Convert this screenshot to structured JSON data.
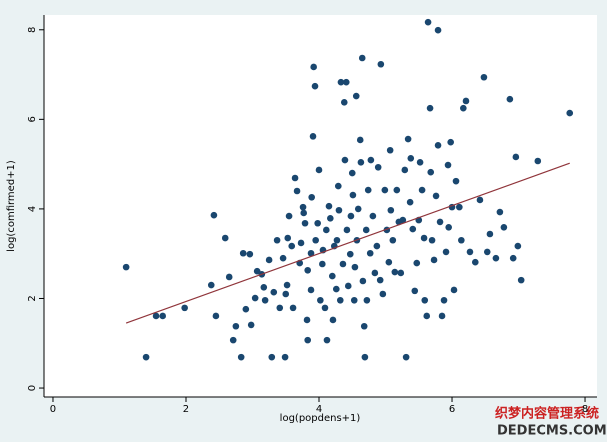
{
  "chart_data": {
    "type": "scatter",
    "x_label": "log(popdens+1)",
    "y_label": "log(comfirmed+1)",
    "xlim": [
      -0.135,
      8.18
    ],
    "ylim": [
      -0.2,
      8.33
    ],
    "xticks": [
      0,
      2,
      4,
      6,
      8
    ],
    "yticks": [
      0,
      2,
      4,
      6,
      8
    ],
    "grid": false,
    "series": [
      {
        "color": "#1a476f",
        "style": "markers",
        "x": [
          1.1,
          1.4,
          1.55,
          1.65,
          1.98,
          2.42,
          2.38,
          2.45,
          2.59,
          2.65,
          2.71,
          2.75,
          2.83,
          2.86,
          2.96,
          2.9,
          2.98,
          3.04,
          3.07,
          3.14,
          3.17,
          3.19,
          3.25,
          3.29,
          3.32,
          3.37,
          3.41,
          3.46,
          3.49,
          3.5,
          3.52,
          3.53,
          3.55,
          3.59,
          3.61,
          3.64,
          3.67,
          3.71,
          3.73,
          3.76,
          3.77,
          3.79,
          3.82,
          3.83,
          3.83,
          3.88,
          3.88,
          3.89,
          3.91,
          3.92,
          3.94,
          3.95,
          3.98,
          4.0,
          4.02,
          4.05,
          4.06,
          4.09,
          4.11,
          4.12,
          4.15,
          4.17,
          4.2,
          4.21,
          4.23,
          4.26,
          4.27,
          4.29,
          4.3,
          4.32,
          4.33,
          4.36,
          4.38,
          4.39,
          4.41,
          4.42,
          4.44,
          4.47,
          4.48,
          4.5,
          4.51,
          4.53,
          4.54,
          4.56,
          4.57,
          4.59,
          4.62,
          4.63,
          4.65,
          4.66,
          4.68,
          4.69,
          4.71,
          4.72,
          4.74,
          4.77,
          4.78,
          4.81,
          4.84,
          4.87,
          4.89,
          4.92,
          4.93,
          4.96,
          4.99,
          5.02,
          5.05,
          5.07,
          5.08,
          5.11,
          5.14,
          5.17,
          5.2,
          5.23,
          5.26,
          5.29,
          5.31,
          5.34,
          5.37,
          5.38,
          5.41,
          5.44,
          5.47,
          5.5,
          5.52,
          5.55,
          5.58,
          5.59,
          5.62,
          5.64,
          5.67,
          5.68,
          5.7,
          5.73,
          5.76,
          5.79,
          5.79,
          5.82,
          5.85,
          5.88,
          5.91,
          5.94,
          5.95,
          5.98,
          6.0,
          6.03,
          6.06,
          6.11,
          6.14,
          6.17,
          6.21,
          6.27,
          6.35,
          6.42,
          6.48,
          6.53,
          6.57,
          6.66,
          6.72,
          6.78,
          6.87,
          6.92,
          6.96,
          6.99,
          7.04,
          7.29,
          7.77
        ],
        "values": [
          2.7,
          0.69,
          1.61,
          1.61,
          1.79,
          3.86,
          2.3,
          1.61,
          3.35,
          2.48,
          1.07,
          1.38,
          0.69,
          3.01,
          2.99,
          1.76,
          1.41,
          2.01,
          2.61,
          2.54,
          2.25,
          1.96,
          2.86,
          0.69,
          2.14,
          3.3,
          1.79,
          2.9,
          0.69,
          2.1,
          2.3,
          3.35,
          3.84,
          3.17,
          1.79,
          4.69,
          4.4,
          2.79,
          3.24,
          4.04,
          3.91,
          3.68,
          1.52,
          2.63,
          1.07,
          2.19,
          3.01,
          4.26,
          5.62,
          7.17,
          6.74,
          3.3,
          3.68,
          4.87,
          1.96,
          2.77,
          3.08,
          1.79,
          3.53,
          1.07,
          4.06,
          3.79,
          2.5,
          1.52,
          3.17,
          2.21,
          3.3,
          4.51,
          3.97,
          1.96,
          6.83,
          2.77,
          6.38,
          5.09,
          6.83,
          3.53,
          2.28,
          2.99,
          3.84,
          4.8,
          4.31,
          1.96,
          2.7,
          6.52,
          3.3,
          4.0,
          5.54,
          5.04,
          7.37,
          2.39,
          1.38,
          0.69,
          3.53,
          1.96,
          4.42,
          3.01,
          5.09,
          3.84,
          2.57,
          3.17,
          4.93,
          2.41,
          7.23,
          2.1,
          4.42,
          3.53,
          2.81,
          5.31,
          3.97,
          3.3,
          2.59,
          4.42,
          3.71,
          2.57,
          3.75,
          4.87,
          0.69,
          5.56,
          4.15,
          5.13,
          3.55,
          2.17,
          2.79,
          3.75,
          5.04,
          4.42,
          3.35,
          1.96,
          1.61,
          8.17,
          6.25,
          4.82,
          3.3,
          2.86,
          4.29,
          7.99,
          5.42,
          3.71,
          1.61,
          1.96,
          3.04,
          4.98,
          3.59,
          5.49,
          4.04,
          2.19,
          4.62,
          4.04,
          3.3,
          6.25,
          6.41,
          3.04,
          2.81,
          4.2,
          6.94,
          3.04,
          3.44,
          2.9,
          3.93,
          3.59,
          6.45,
          2.9,
          5.16,
          3.17,
          2.41,
          5.07,
          6.14
        ]
      },
      {
        "color": "#90353b",
        "style": "line",
        "x": [
          1.1,
          7.77
        ],
        "values": [
          1.45,
          5.02
        ]
      }
    ],
    "watermark": [
      "织梦内容管理系统",
      "DEDECMS.COM"
    ]
  }
}
